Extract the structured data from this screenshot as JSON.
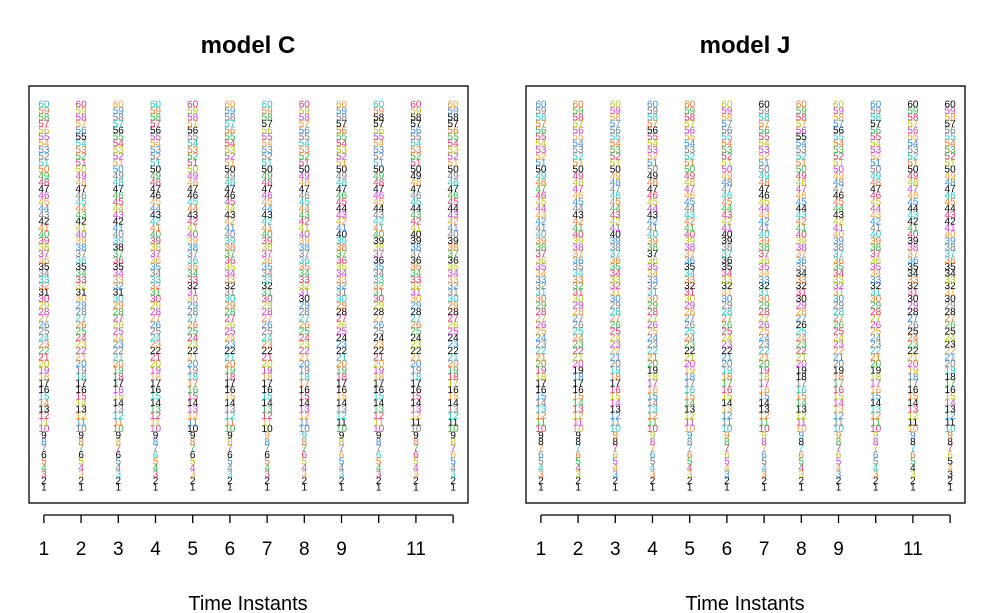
{
  "chart_data": [
    {
      "type": "scatter",
      "title": "model C",
      "xlabel": "Time Instants",
      "ylabel": "",
      "xlim": [
        0.6,
        12.4
      ],
      "ylim": [
        -1.5,
        62.8
      ],
      "x_ticks": [
        1,
        2,
        3,
        4,
        5,
        6,
        7,
        8,
        9,
        10,
        11,
        12
      ],
      "x_tick_labels": [
        "1",
        "2",
        "3",
        "4",
        "5",
        "6",
        "7",
        "8",
        "9",
        "",
        "11",
        ""
      ],
      "point_labels": "series rank numbers 1-60 plotted at each time instant",
      "highlighted": [
        [
          1,
          2,
          6,
          9,
          13,
          16,
          17,
          31,
          35,
          42,
          47
        ],
        [
          1,
          2,
          6,
          9,
          13,
          16,
          17,
          31,
          35,
          42,
          47,
          55
        ],
        [
          1,
          2,
          6,
          9,
          14,
          17,
          31,
          35,
          38,
          42,
          47,
          56
        ],
        [
          1,
          2,
          9,
          14,
          16,
          17,
          22,
          43,
          46,
          47,
          50,
          56
        ],
        [
          1,
          2,
          6,
          9,
          10,
          14,
          22,
          32,
          43,
          46,
          47,
          56
        ],
        [
          1,
          2,
          6,
          9,
          14,
          16,
          17,
          22,
          32,
          43,
          46,
          47,
          50
        ],
        [
          1,
          2,
          6,
          10,
          14,
          16,
          17,
          22,
          32,
          43,
          47,
          50,
          57
        ],
        [
          1,
          2,
          14,
          16,
          30,
          47,
          50
        ],
        [
          1,
          2,
          9,
          11,
          14,
          16,
          17,
          22,
          24,
          28,
          40,
          44,
          47,
          50,
          57
        ],
        [
          1,
          2,
          9,
          14,
          16,
          17,
          22,
          24,
          28,
          36,
          39,
          44,
          47,
          50,
          57,
          58
        ],
        [
          1,
          2,
          9,
          11,
          14,
          16,
          17,
          22,
          24,
          28,
          36,
          39,
          40,
          44,
          47,
          49,
          50,
          57,
          58
        ],
        [
          1,
          2,
          9,
          11,
          14,
          16,
          22,
          24,
          28,
          36,
          39,
          44,
          47,
          50,
          57,
          58
        ]
      ]
    },
    {
      "type": "scatter",
      "title": "model J",
      "xlabel": "Time Instants",
      "ylabel": "",
      "xlim": [
        0.6,
        12.4
      ],
      "ylim": [
        -1.5,
        62.8
      ],
      "x_ticks": [
        1,
        2,
        3,
        4,
        5,
        6,
        7,
        8,
        9,
        10,
        11,
        12
      ],
      "x_tick_labels": [
        "1",
        "2",
        "3",
        "4",
        "5",
        "6",
        "7",
        "8",
        "9",
        "",
        "11",
        ""
      ],
      "point_labels": "series rank numbers 1-60 plotted at each time instant",
      "highlighted": [
        [
          1,
          2,
          8,
          9,
          16,
          17,
          50
        ],
        [
          1,
          2,
          8,
          9,
          16,
          17,
          19,
          43,
          50
        ],
        [
          1,
          2,
          8,
          13,
          17,
          40,
          50
        ],
        [
          1,
          2,
          19,
          37,
          43,
          47,
          49,
          56
        ],
        [
          1,
          2,
          13,
          22,
          32,
          35
        ],
        [
          1,
          2,
          14,
          22,
          32,
          35,
          36,
          39,
          40
        ],
        [
          1,
          2,
          13,
          14,
          32,
          46,
          47,
          60
        ],
        [
          1,
          2,
          8,
          13,
          18,
          19,
          26,
          30,
          32,
          34,
          44,
          55
        ],
        [
          1,
          2,
          19,
          43,
          46,
          56
        ],
        [
          1,
          2,
          14,
          19,
          32,
          47,
          57
        ],
        [
          1,
          2,
          4,
          8,
          11,
          14,
          16,
          22,
          25,
          28,
          30,
          32,
          34,
          35,
          39,
          42,
          44,
          50,
          60
        ],
        [
          1,
          2,
          3,
          5,
          8,
          11,
          13,
          16,
          18,
          23,
          25,
          28,
          30,
          32,
          34,
          35,
          42,
          44,
          47,
          50,
          57,
          60
        ]
      ]
    }
  ]
}
